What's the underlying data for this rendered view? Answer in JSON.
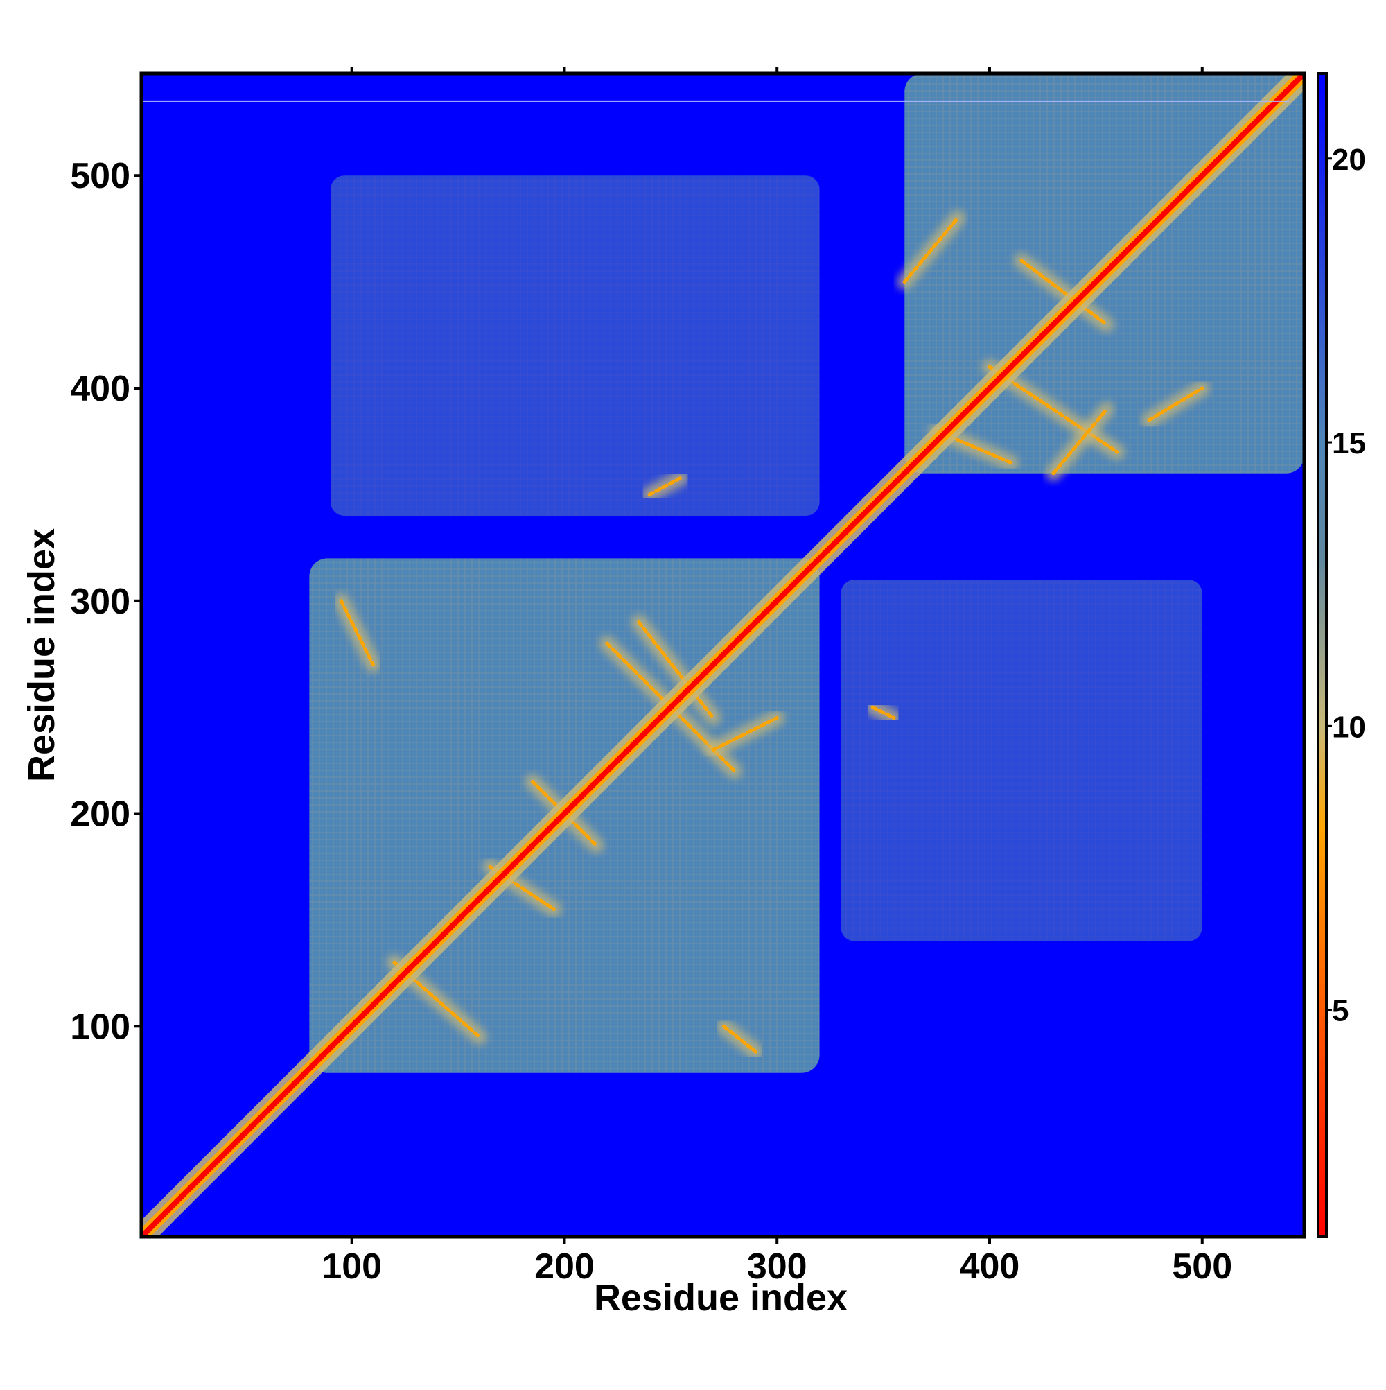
{
  "chart_data": {
    "type": "heatmap",
    "title": "",
    "xlabel": "Residue index",
    "ylabel": "Residue index",
    "xlim": [
      1,
      548
    ],
    "ylim": [
      1,
      548
    ],
    "x_ticks": [
      100,
      200,
      300,
      400,
      500
    ],
    "y_ticks": [
      100,
      200,
      300,
      400,
      500
    ],
    "x_tick_labels": [
      "100",
      "200",
      "300",
      "400",
      "500"
    ],
    "y_tick_labels": [
      "100",
      "200",
      "300",
      "400",
      "500"
    ],
    "colorbar": {
      "range": [
        1,
        21.5
      ],
      "ticks": [
        5,
        10,
        15,
        20
      ],
      "tick_labels": [
        "5",
        "10",
        "15",
        "20"
      ],
      "stops": [
        {
          "value": 1,
          "color": "#ff0000"
        },
        {
          "value": 5,
          "color": "#ff5a00"
        },
        {
          "value": 8.2,
          "color": "#ffa500"
        },
        {
          "value": 10,
          "color": "#c8b878"
        },
        {
          "value": 13,
          "color": "#5f87a0"
        },
        {
          "value": 15,
          "color": "#4f86b8"
        },
        {
          "value": 21.5,
          "color": "#0000ff"
        }
      ]
    },
    "colors": {
      "background": "#0000ff",
      "domain_fill": "#4f86b8",
      "contact_mid": "#c8b878",
      "contact_near": "#ffa500",
      "diagonal": "#ff0000"
    },
    "domains": [
      {
        "name": "domain-1",
        "x": [
          80,
          320
        ],
        "y": [
          78,
          320
        ]
      },
      {
        "name": "domain-2",
        "x": [
          360,
          548
        ],
        "y": [
          360,
          548
        ]
      }
    ],
    "off_diagonal_blocks": [
      {
        "x": [
          90,
          320
        ],
        "y": [
          340,
          500
        ]
      },
      {
        "x": [
          330,
          500
        ],
        "y": [
          140,
          310
        ]
      }
    ],
    "contact_strands": [
      {
        "from": [
          120,
          130
        ],
        "to": [
          160,
          95
        ]
      },
      {
        "from": [
          165,
          175
        ],
        "to": [
          195,
          155
        ]
      },
      {
        "from": [
          185,
          215
        ],
        "to": [
          215,
          185
        ]
      },
      {
        "from": [
          220,
          280
        ],
        "to": [
          280,
          220
        ]
      },
      {
        "from": [
          235,
          290
        ],
        "to": [
          270,
          245
        ]
      },
      {
        "from": [
          270,
          230
        ],
        "to": [
          300,
          245
        ]
      },
      {
        "from": [
          95,
          300
        ],
        "to": [
          110,
          270
        ]
      },
      {
        "from": [
          275,
          100
        ],
        "to": [
          290,
          88
        ]
      },
      {
        "from": [
          360,
          450
        ],
        "to": [
          385,
          480
        ]
      },
      {
        "from": [
          400,
          410
        ],
        "to": [
          460,
          370
        ]
      },
      {
        "from": [
          415,
          460
        ],
        "to": [
          455,
          430
        ]
      },
      {
        "from": [
          430,
          360
        ],
        "to": [
          455,
          390
        ]
      },
      {
        "from": [
          375,
          380
        ],
        "to": [
          410,
          365
        ]
      },
      {
        "from": [
          475,
          385
        ],
        "to": [
          500,
          400
        ]
      },
      {
        "from": [
          240,
          350
        ],
        "to": [
          255,
          358
        ]
      },
      {
        "from": [
          345,
          250
        ],
        "to": [
          355,
          245
        ]
      }
    ]
  }
}
